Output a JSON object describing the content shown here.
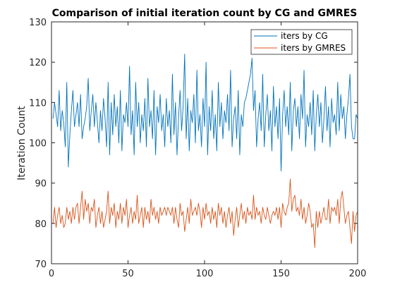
{
  "chart_data": {
    "type": "line",
    "title": "Comparison of initial iteration count by CG and GMRES",
    "xlabel": "",
    "ylabel": "Iteration Count",
    "xlim": [
      0,
      200
    ],
    "ylim": [
      70,
      130
    ],
    "xticks": [
      0,
      50,
      100,
      150,
      200
    ],
    "yticks": [
      70,
      80,
      90,
      100,
      110,
      120,
      130
    ],
    "grid": false,
    "legend_position": "top-right",
    "x": [
      1,
      2,
      3,
      4,
      5,
      6,
      7,
      8,
      9,
      10,
      11,
      12,
      13,
      14,
      15,
      16,
      17,
      18,
      19,
      20,
      21,
      22,
      23,
      24,
      25,
      26,
      27,
      28,
      29,
      30,
      31,
      32,
      33,
      34,
      35,
      36,
      37,
      38,
      39,
      40,
      41,
      42,
      43,
      44,
      45,
      46,
      47,
      48,
      49,
      50,
      51,
      52,
      53,
      54,
      55,
      56,
      57,
      58,
      59,
      60,
      61,
      62,
      63,
      64,
      65,
      66,
      67,
      68,
      69,
      70,
      71,
      72,
      73,
      74,
      75,
      76,
      77,
      78,
      79,
      80,
      81,
      82,
      83,
      84,
      85,
      86,
      87,
      88,
      89,
      90,
      91,
      92,
      93,
      94,
      95,
      96,
      97,
      98,
      99,
      100,
      101,
      102,
      103,
      104,
      105,
      106,
      107,
      108,
      109,
      110,
      111,
      112,
      113,
      114,
      115,
      116,
      117,
      118,
      119,
      120,
      121,
      122,
      123,
      124,
      125,
      126,
      127,
      128,
      129,
      130,
      131,
      132,
      133,
      134,
      135,
      136,
      137,
      138,
      139,
      140,
      141,
      142,
      143,
      144,
      145,
      146,
      147,
      148,
      149,
      150,
      151,
      152,
      153,
      154,
      155,
      156,
      157,
      158,
      159,
      160,
      161,
      162,
      163,
      164,
      165,
      166,
      167,
      168,
      169,
      170,
      171,
      172,
      173,
      174,
      175,
      176,
      177,
      178,
      179,
      180,
      181,
      182,
      183,
      184,
      185,
      186,
      187,
      188,
      189,
      190,
      191,
      192,
      193,
      194,
      195,
      196,
      197,
      198,
      199,
      200
    ],
    "series": [
      {
        "name": "iters by CG",
        "color": "#0072BD",
        "values": [
          106,
          110,
          107,
          104,
          113,
          103,
          108,
          105,
          99,
          115,
          94,
          102,
          108,
          113,
          104,
          107,
          110,
          104,
          112,
          101,
          104,
          106,
          109,
          116,
          103,
          108,
          112,
          104,
          110,
          105,
          100,
          108,
          103,
          111,
          106,
          99,
          115,
          97,
          110,
          102,
          112,
          104,
          109,
          100,
          113,
          98,
          107,
          105,
          110,
          104,
          119,
          102,
          108,
          97,
          115,
          104,
          110,
          100,
          107,
          103,
          111,
          99,
          116,
          104,
          108,
          101,
          113,
          97,
          109,
          105,
          112,
          103,
          107,
          99,
          111,
          104,
          108,
          100,
          117,
          102,
          110,
          97,
          106,
          113,
          103,
          109,
          122,
          101,
          111,
          98,
          108,
          105,
          112,
          100,
          118,
          103,
          107,
          99,
          111,
          104,
          120,
          97,
          109,
          103,
          113,
          101,
          107,
          98,
          115,
          104,
          110,
          101,
          108,
          105,
          112,
          103,
          118,
          99,
          106,
          109,
          101,
          113,
          97,
          107,
          104,
          110,
          111,
          113,
          115,
          117,
          121,
          108,
          113,
          99,
          106,
          110,
          103,
          117,
          99,
          107,
          112,
          103,
          108,
          98,
          114,
          104,
          109,
          101,
          111,
          93,
          107,
          113,
          104,
          109,
          102,
          115,
          98,
          108,
          111,
          104,
          109,
          101,
          112,
          106,
          118,
          99,
          107,
          104,
          110,
          102,
          113,
          98,
          107,
          112,
          104,
          110,
          100,
          106,
          114,
          103,
          109,
          99,
          111,
          105,
          107,
          102,
          115,
          103,
          112,
          106,
          109,
          101,
          107,
          111,
          117,
          104,
          101,
          101,
          107,
          106
        ]
      },
      {
        "name": "iters by GMRES",
        "color": "#D95319",
        "values": [
          80,
          84,
          79,
          82,
          84,
          80,
          82,
          79,
          80,
          84,
          81,
          83,
          80,
          84,
          81,
          84,
          85,
          80,
          84,
          88,
          81,
          86,
          83,
          85,
          80,
          84,
          83,
          86,
          79,
          82,
          84,
          80,
          83,
          79,
          81,
          83,
          88,
          80,
          84,
          82,
          85,
          79,
          83,
          81,
          85,
          80,
          84,
          82,
          86,
          79,
          82,
          84,
          80,
          83,
          81,
          87,
          80,
          82,
          84,
          79,
          84,
          81,
          83,
          80,
          86,
          82,
          84,
          81,
          83,
          80,
          84,
          82,
          83,
          84,
          82,
          84,
          83,
          82,
          84,
          80,
          84,
          81,
          79,
          85,
          82,
          83,
          78,
          81,
          84,
          80,
          86,
          82,
          83,
          84,
          82,
          85,
          83,
          79,
          84,
          81,
          85,
          82,
          83,
          80,
          84,
          81,
          83,
          79,
          85,
          82,
          84,
          80,
          83,
          79,
          82,
          84,
          80,
          83,
          77,
          81,
          84,
          79,
          82,
          85,
          81,
          83,
          80,
          84,
          82,
          83,
          81,
          87,
          81,
          84,
          82,
          83,
          80,
          84,
          82,
          81,
          84,
          82,
          80,
          82,
          83,
          82,
          84,
          81,
          84,
          79,
          85,
          83,
          82,
          84,
          85,
          91,
          83,
          86,
          87,
          83,
          84,
          82,
          86,
          81,
          84,
          80,
          82,
          85,
          83,
          79,
          80,
          74,
          83,
          79,
          83,
          80,
          82,
          84,
          81,
          81,
          86,
          80,
          84,
          83,
          84,
          82,
          86,
          80,
          86,
          88,
          84,
          80,
          82,
          83,
          79,
          75,
          83,
          78,
          82,
          83
        ]
      }
    ]
  }
}
